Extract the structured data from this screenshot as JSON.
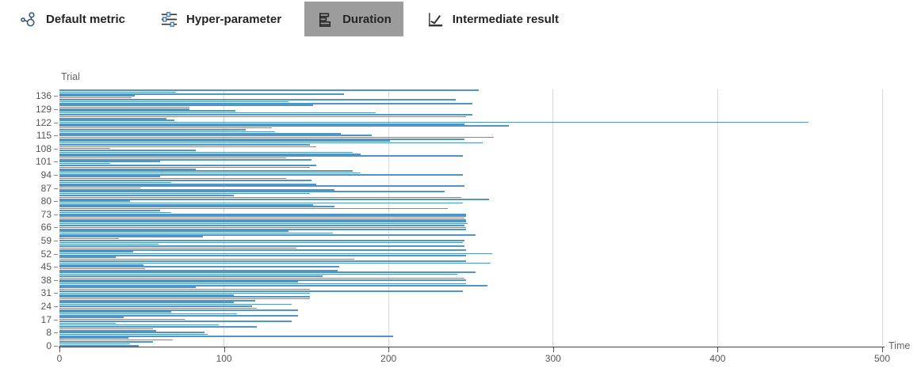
{
  "tabs": [
    {
      "label": "Default metric",
      "icon": "scatter-cluster-icon",
      "selected": false
    },
    {
      "label": "Hyper-parameter",
      "icon": "sliders-icon",
      "selected": false
    },
    {
      "label": "Duration",
      "icon": "horizontal-bars-icon",
      "selected": true
    },
    {
      "label": "Intermediate result",
      "icon": "line-chart-icon",
      "selected": false
    }
  ],
  "colors": {
    "bar": "#4e96c7",
    "selected_tab_bg": "#9c9c9c",
    "gridline": "#d9d9d9",
    "axis_line": "#444444",
    "tick_text": "#555555",
    "axis_title_text": "#666666"
  },
  "chart_data": {
    "type": "bar",
    "orientation": "horizontal",
    "title": "",
    "xlabel": "Time",
    "ylabel": "Trial",
    "xlim": [
      0,
      500
    ],
    "x_ticks": [
      0,
      100,
      200,
      300,
      400,
      500
    ],
    "grid": true,
    "legend": null,
    "y_tick_rows": [
      0,
      7,
      14,
      21,
      28,
      35,
      42,
      49,
      56,
      63,
      70,
      77,
      84,
      91,
      98,
      105,
      112,
      119,
      126,
      133
    ],
    "y_tick_labels": [
      "0",
      "8",
      "17",
      "24",
      "31",
      "38",
      "45",
      "52",
      "59",
      "66",
      "73",
      "80",
      "87",
      "94",
      "101",
      "108",
      "115",
      "122",
      "129",
      "136"
    ],
    "values_note": "trial durations bottom-to-top, estimated from gridlines",
    "values": [
      48,
      43,
      57,
      69,
      42,
      203,
      90,
      88,
      59,
      57,
      120,
      97,
      34,
      141,
      76,
      39,
      145,
      108,
      68,
      145,
      120,
      117,
      141,
      106,
      119,
      152,
      152,
      106,
      152,
      245,
      152,
      83,
      260,
      247,
      145,
      247,
      246,
      160,
      242,
      253,
      169,
      52,
      170,
      51,
      262,
      247,
      179,
      34,
      247,
      263,
      45,
      247,
      144,
      246,
      60,
      245,
      246,
      36,
      87,
      253,
      166,
      139,
      247,
      247,
      246,
      248,
      247,
      247,
      246,
      247,
      247,
      68,
      61,
      236,
      167,
      154,
      245,
      43,
      261,
      244,
      106,
      152,
      234,
      167,
      49,
      246,
      156,
      68,
      153,
      138,
      61,
      245,
      183,
      178,
      83,
      152,
      156,
      31,
      61,
      153,
      138,
      245,
      183,
      178,
      83,
      31,
      156,
      152,
      257,
      201,
      246,
      264,
      190,
      171,
      131,
      113,
      129,
      273,
      246,
      455,
      70,
      65,
      247,
      251,
      192,
      107,
      79,
      79,
      154,
      251,
      139,
      241,
      44,
      46,
      173,
      71,
      255
    ]
  }
}
